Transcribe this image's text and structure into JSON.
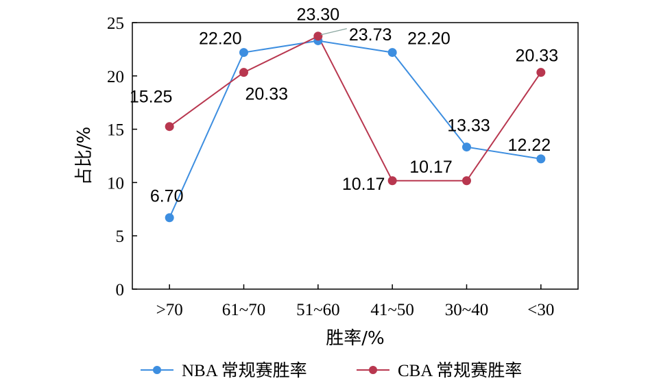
{
  "chart_data": {
    "type": "line",
    "categories": [
      ">70",
      "61~70",
      "51~60",
      "41~50",
      "30~40",
      "<30"
    ],
    "xlabel": "胜率/%",
    "ylabel": "占比/%",
    "ylim": [
      0,
      25
    ],
    "yticks": [
      0,
      5,
      10,
      15,
      20,
      25
    ],
    "grid": false,
    "legend_position": "bottom",
    "series": [
      {
        "name": "NBA 常规赛胜率",
        "color": "#3d8ee0",
        "values": [
          6.7,
          22.2,
          23.3,
          22.2,
          13.33,
          12.22
        ],
        "labels": [
          "6.70",
          "22.20",
          "23.30",
          "22.20",
          "13.33",
          "12.22"
        ]
      },
      {
        "name": "CBA 常规赛胜率",
        "color": "#b8374f",
        "values": [
          15.25,
          20.33,
          23.73,
          10.17,
          10.17,
          20.33
        ],
        "labels": [
          "15.25",
          "20.33",
          "23.73",
          "10.17",
          "10.17",
          "20.33"
        ]
      }
    ]
  }
}
